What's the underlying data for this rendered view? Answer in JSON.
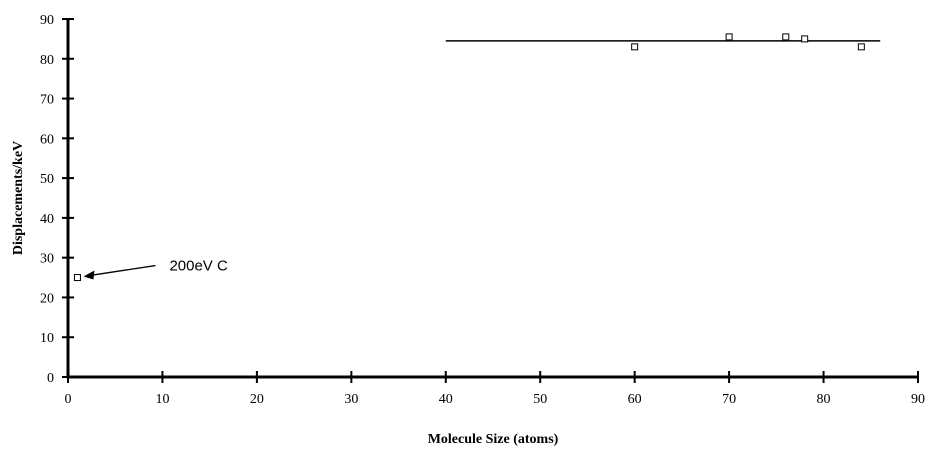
{
  "chart_data": {
    "type": "scatter",
    "xlabel": "Molecule Size (atoms)",
    "ylabel": "Displacements/keV",
    "xlim": [
      0,
      90
    ],
    "ylim": [
      0,
      90
    ],
    "x_ticks": [
      0,
      10,
      20,
      30,
      40,
      50,
      60,
      70,
      80,
      90
    ],
    "y_ticks": [
      0,
      10,
      20,
      30,
      40,
      50,
      60,
      70,
      80,
      90
    ],
    "grid": false,
    "legend": "none",
    "series": [
      {
        "marker": "open-square",
        "points": [
          {
            "x": 1,
            "y": 25
          },
          {
            "x": 60,
            "y": 83
          },
          {
            "x": 70,
            "y": 85.5
          },
          {
            "x": 76,
            "y": 85.5
          },
          {
            "x": 78,
            "y": 85
          },
          {
            "x": 84,
            "y": 83
          }
        ]
      }
    ],
    "trend_line": {
      "x": [
        40,
        86
      ],
      "y": [
        84.5,
        84.5
      ]
    },
    "annotations": [
      {
        "text": "200eV C",
        "point": {
          "x": 1,
          "y": 25
        }
      }
    ]
  }
}
